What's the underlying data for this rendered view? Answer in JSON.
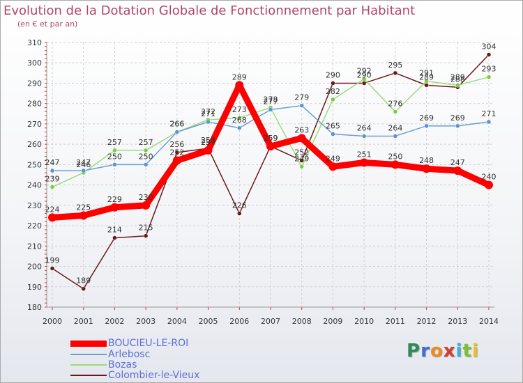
{
  "header": {
    "title": "Evolution de la Dotation Globale de Fonctionnement par Habitant",
    "subtitle": "(en € et par an)"
  },
  "logo": {
    "text": "Proxiti",
    "letters": [
      {
        "ch": "P",
        "color": "#2e8b57"
      },
      {
        "ch": "r",
        "color": "#3b6fd6"
      },
      {
        "ch": "o",
        "color": "#f08a1c"
      },
      {
        "ch": "x",
        "color": "#d93a2b"
      },
      {
        "ch": "i",
        "color": "#3bb0d9"
      },
      {
        "ch": "t",
        "color": "#7cc12e"
      },
      {
        "ch": "i",
        "color": "#f0c21c"
      }
    ]
  },
  "chart_data": {
    "type": "line",
    "title": "Evolution de la Dotation Globale de Fonctionnement par Habitant",
    "subtitle": "(en € et par an)",
    "xlabel": "",
    "ylabel": "",
    "categories": [
      "2000",
      "2001",
      "2002",
      "2003",
      "2004",
      "2005",
      "2006",
      "2007",
      "2008",
      "2009",
      "2010",
      "2011",
      "2012",
      "2013",
      "2014"
    ],
    "ylim": [
      180,
      310
    ],
    "yticks": [
      180,
      190,
      200,
      210,
      220,
      230,
      240,
      250,
      260,
      270,
      280,
      290,
      300,
      310
    ],
    "grid": true,
    "legend_position": "bottom-left",
    "series": [
      {
        "name": "Colombier-le-Vieux",
        "color": "#6b1a1a",
        "marker": "#6b1a1a",
        "weight": "thin",
        "values": [
          199,
          189,
          214,
          215,
          256,
          258,
          226,
          259,
          252,
          290,
          290,
          295,
          289,
          288,
          304
        ]
      },
      {
        "name": "Bozas",
        "color": "#99dd77",
        "marker": "#77cc44",
        "weight": "thin",
        "values": [
          239,
          246,
          257,
          257,
          266,
          272,
          273,
          278,
          249,
          282,
          292,
          276,
          291,
          289,
          293
        ]
      },
      {
        "name": "Arlebosc",
        "color": "#6a9fd0",
        "marker": "#5b93cf",
        "weight": "thin",
        "values": [
          247,
          247,
          250,
          250,
          266,
          271,
          268,
          277,
          279,
          265,
          264,
          264,
          269,
          269,
          271
        ]
      },
      {
        "name": "BOUCIEU-LE-ROI",
        "color": "#ff0000",
        "marker": "#ff0000",
        "weight": "thick",
        "values": [
          224,
          225,
          229,
          230,
          252,
          257,
          289,
          259,
          263,
          249,
          251,
          250,
          248,
          247,
          240
        ]
      }
    ],
    "legend": [
      {
        "name": "BOUCIEU-LE-ROI",
        "color": "#ff0000"
      },
      {
        "name": "Arlebosc",
        "color": "#6a9fd0"
      },
      {
        "name": "Bozas",
        "color": "#99dd77"
      },
      {
        "name": "Colombier-le-Vieux",
        "color": "#6b1a1a"
      }
    ]
  }
}
